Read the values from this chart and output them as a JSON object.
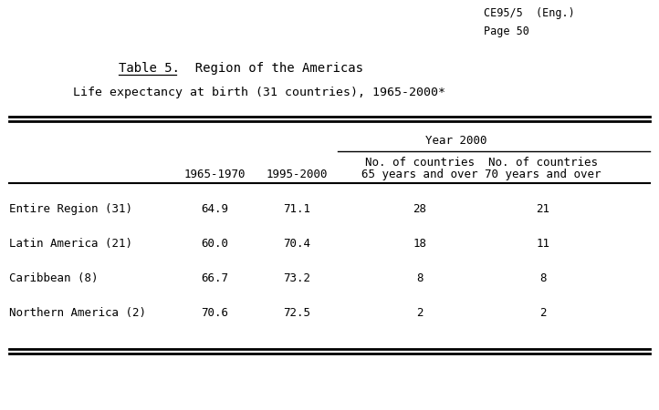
{
  "header_top_right": "CE95/5  (Eng.)\nPage 50",
  "title_underlined": "Table 5.",
  "title_rest": "  Region of the Americas",
  "subtitle": "Life expectancy at birth (31 countries), 1965-2000*",
  "year2000_label": "Year 2000",
  "col_headers_line1": [
    "",
    "",
    "No. of countries",
    "No. of countries"
  ],
  "col_headers_line2": [
    "1965-1970",
    "1995-2000",
    "65 years and over",
    "70 years and over"
  ],
  "rows": [
    [
      "Entire Region (31)",
      "64.9",
      "71.1",
      "28",
      "21"
    ],
    [
      "Latin America (21)",
      "60.0",
      "70.4",
      "18",
      "11"
    ],
    [
      "Caribbean (8)",
      "66.7",
      "73.2",
      "8",
      "8"
    ],
    [
      "Northern America (2)",
      "70.6",
      "72.5",
      "2",
      "2"
    ]
  ],
  "bg_color": "#ffffff",
  "text_color": "#000000",
  "font_family": "DejaVu Sans Mono",
  "font_size": 9.0,
  "title_font_size": 10.0,
  "subtitle_font_size": 9.5
}
